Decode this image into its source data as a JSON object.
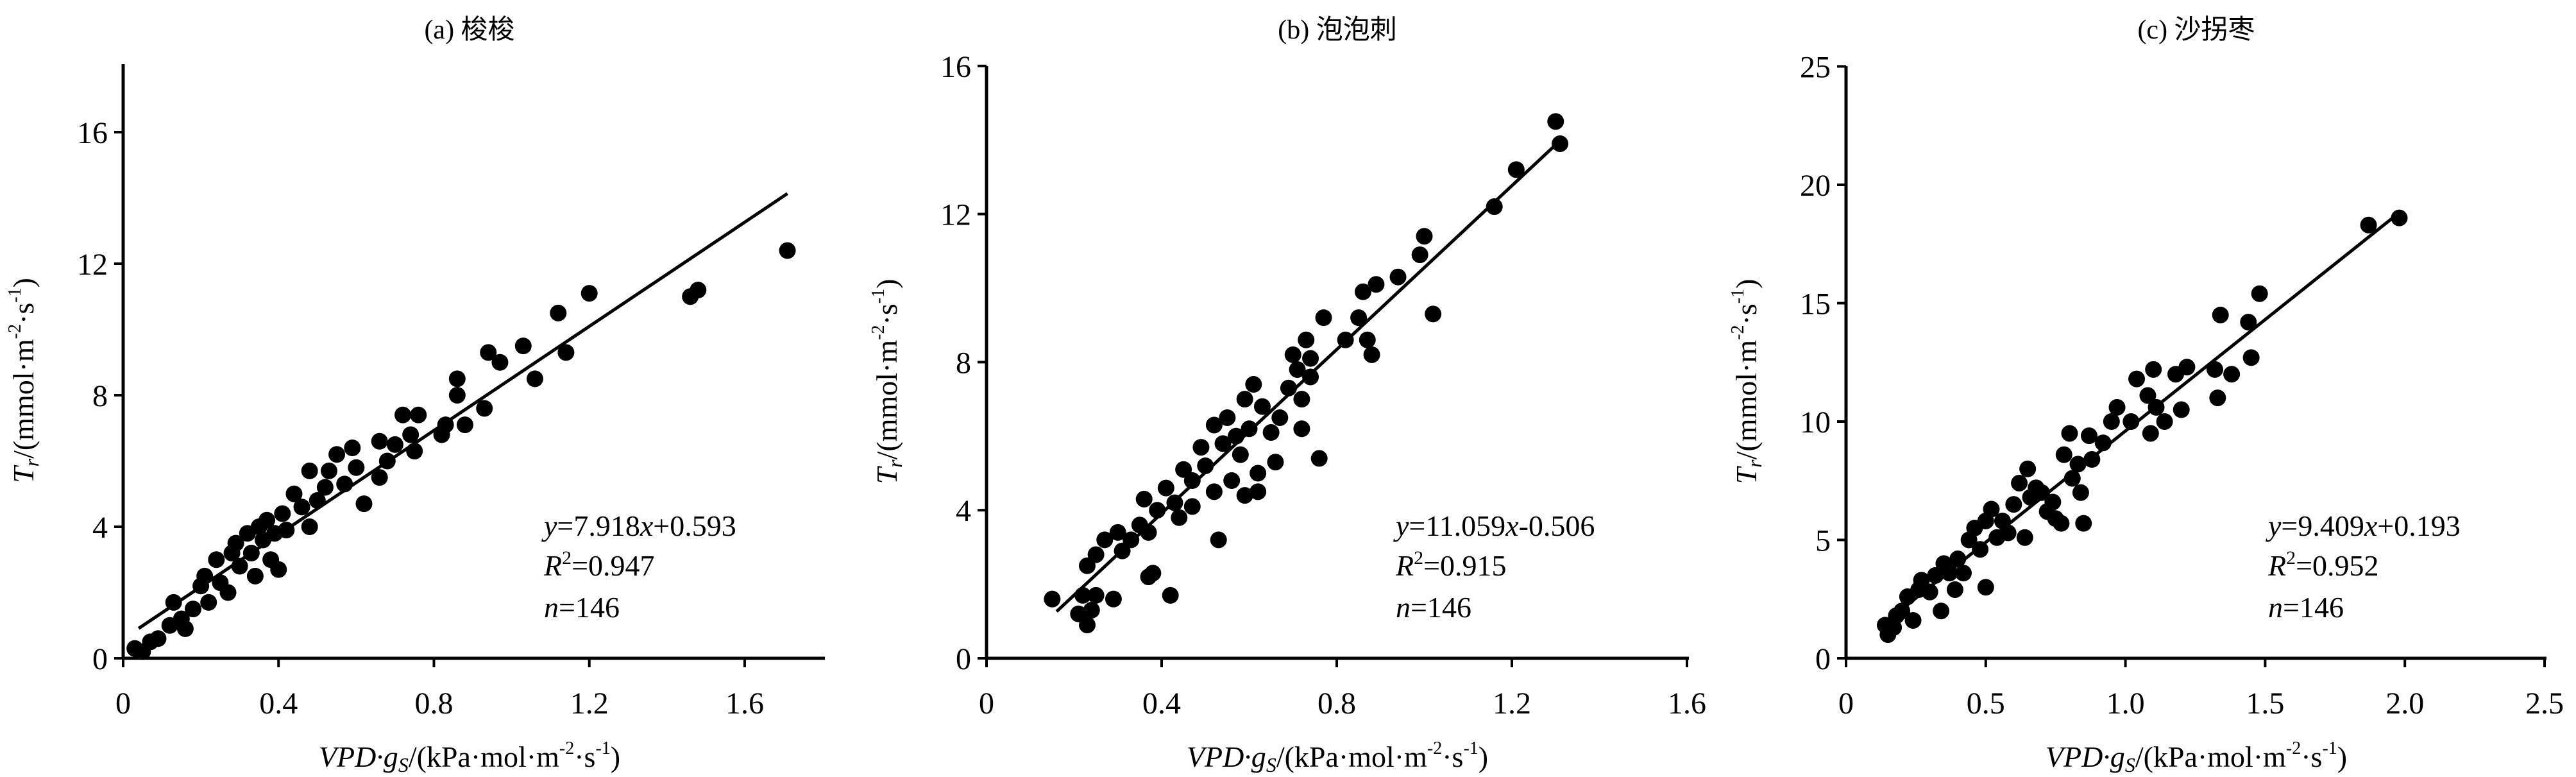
{
  "chart_data": [
    {
      "type": "scatter",
      "title": "(a) 梭梭",
      "xlabel": {
        "var": "VPD·g",
        "sub": "S",
        "unit": "/(kPa·mol·m",
        "sup1": "-2",
        "mid": "·s",
        "sup2": "-1",
        "close": ")"
      },
      "ylabel": {
        "var": "T",
        "sub": "r",
        "unit": "/(mmol·m",
        "sup1": "-2",
        "mid": "·s",
        "sup2": "-1",
        "close": ")"
      },
      "xlim": [
        0,
        1.8
      ],
      "ylim": [
        0,
        18
      ],
      "xticks": [
        "0",
        "0.4",
        "0.8",
        "1.2",
        "1.6"
      ],
      "xtick_values": [
        0,
        0.4,
        0.8,
        1.2,
        1.6
      ],
      "yticks": [
        "0",
        "4",
        "8",
        "12",
        "16"
      ],
      "ytick_values": [
        0,
        4,
        8,
        12,
        16
      ],
      "regression": {
        "slope": 7.918,
        "intercept": 0.593,
        "x_range": [
          0.04,
          1.71
        ]
      },
      "annotation": {
        "eq_y": "y",
        "eq_mid": "=7.918",
        "eq_x": "x",
        "eq_end": "+0.593",
        "r_var": "R",
        "r_sup": "2",
        "r_val": "=0.947",
        "n_var": "n",
        "n_val": "=146"
      },
      "points": [
        [
          0.03,
          0.3
        ],
        [
          0.05,
          0.2
        ],
        [
          0.07,
          0.5
        ],
        [
          0.09,
          0.6
        ],
        [
          0.12,
          1.0
        ],
        [
          0.13,
          1.7
        ],
        [
          0.15,
          1.2
        ],
        [
          0.16,
          0.9
        ],
        [
          0.18,
          1.5
        ],
        [
          0.2,
          2.2
        ],
        [
          0.21,
          2.5
        ],
        [
          0.22,
          1.7
        ],
        [
          0.24,
          3.0
        ],
        [
          0.25,
          2.3
        ],
        [
          0.27,
          2.0
        ],
        [
          0.28,
          3.2
        ],
        [
          0.29,
          3.5
        ],
        [
          0.3,
          2.8
        ],
        [
          0.32,
          3.8
        ],
        [
          0.33,
          3.2
        ],
        [
          0.34,
          2.5
        ],
        [
          0.35,
          4.0
        ],
        [
          0.36,
          3.6
        ],
        [
          0.37,
          4.2
        ],
        [
          0.38,
          3.0
        ],
        [
          0.39,
          3.8
        ],
        [
          0.4,
          2.7
        ],
        [
          0.41,
          4.4
        ],
        [
          0.42,
          3.9
        ],
        [
          0.44,
          5.0
        ],
        [
          0.46,
          4.6
        ],
        [
          0.48,
          4.0
        ],
        [
          0.48,
          5.7
        ],
        [
          0.5,
          4.8
        ],
        [
          0.52,
          5.2
        ],
        [
          0.53,
          5.7
        ],
        [
          0.55,
          6.2
        ],
        [
          0.57,
          5.3
        ],
        [
          0.59,
          6.4
        ],
        [
          0.6,
          5.8
        ],
        [
          0.62,
          4.7
        ],
        [
          0.66,
          5.5
        ],
        [
          0.66,
          6.6
        ],
        [
          0.68,
          6.0
        ],
        [
          0.7,
          6.5
        ],
        [
          0.72,
          7.4
        ],
        [
          0.74,
          6.8
        ],
        [
          0.75,
          6.3
        ],
        [
          0.76,
          7.4
        ],
        [
          0.82,
          6.8
        ],
        [
          0.83,
          7.1
        ],
        [
          0.86,
          8.0
        ],
        [
          0.86,
          8.5
        ],
        [
          0.88,
          7.1
        ],
        [
          0.93,
          7.6
        ],
        [
          0.94,
          9.3
        ],
        [
          0.97,
          9.0
        ],
        [
          1.03,
          9.5
        ],
        [
          1.06,
          8.5
        ],
        [
          1.12,
          10.5
        ],
        [
          1.14,
          9.3
        ],
        [
          1.2,
          11.1
        ],
        [
          1.46,
          11.0
        ],
        [
          1.48,
          11.2
        ],
        [
          1.71,
          12.4
        ]
      ]
    },
    {
      "type": "scatter",
      "title": "(b) 泡泡刺",
      "xlabel": {
        "var": "VPD·g",
        "sub": "S",
        "unit": "/(kPa·mol·m",
        "sup1": "-2",
        "mid": "·s",
        "sup2": "-1",
        "close": ")"
      },
      "ylabel": {
        "var": "T",
        "sub": "r",
        "unit": "/(mmol·m",
        "sup1": "-2",
        "mid": "·s",
        "sup2": "-1",
        "close": ")"
      },
      "xlim": [
        0,
        1.6
      ],
      "ylim": [
        0,
        16
      ],
      "xticks": [
        "0",
        "0.4",
        "0.8",
        "1.2",
        "1.6"
      ],
      "xtick_values": [
        0,
        0.4,
        0.8,
        1.2,
        1.6
      ],
      "yticks": [
        "0",
        "4",
        "8",
        "12",
        "16"
      ],
      "ytick_values": [
        0,
        4,
        8,
        12,
        16
      ],
      "regression": {
        "slope": 11.059,
        "intercept": -0.506,
        "x_range": [
          0.16,
          1.31
        ]
      },
      "annotation": {
        "eq_y": "y",
        "eq_mid": "=11.059",
        "eq_x": "x",
        "eq_end": "-0.506",
        "r_var": "R",
        "r_sup": "2",
        "r_val": "=0.915",
        "n_var": "n",
        "n_val": "=146"
      },
      "points": [
        [
          0.15,
          1.6
        ],
        [
          0.21,
          1.2
        ],
        [
          0.22,
          1.7
        ],
        [
          0.23,
          0.9
        ],
        [
          0.24,
          1.3
        ],
        [
          0.25,
          1.7
        ],
        [
          0.23,
          2.5
        ],
        [
          0.25,
          2.8
        ],
        [
          0.27,
          3.2
        ],
        [
          0.29,
          1.6
        ],
        [
          0.3,
          3.4
        ],
        [
          0.31,
          2.9
        ],
        [
          0.33,
          3.2
        ],
        [
          0.35,
          3.6
        ],
        [
          0.36,
          4.3
        ],
        [
          0.37,
          2.2
        ],
        [
          0.37,
          3.4
        ],
        [
          0.38,
          2.3
        ],
        [
          0.39,
          4.0
        ],
        [
          0.41,
          4.6
        ],
        [
          0.42,
          1.7
        ],
        [
          0.43,
          4.2
        ],
        [
          0.44,
          3.8
        ],
        [
          0.45,
          5.1
        ],
        [
          0.47,
          4.8
        ],
        [
          0.47,
          4.1
        ],
        [
          0.49,
          5.7
        ],
        [
          0.5,
          5.2
        ],
        [
          0.52,
          4.5
        ],
        [
          0.52,
          6.3
        ],
        [
          0.53,
          3.2
        ],
        [
          0.54,
          5.8
        ],
        [
          0.55,
          6.5
        ],
        [
          0.56,
          4.8
        ],
        [
          0.57,
          6.0
        ],
        [
          0.58,
          5.5
        ],
        [
          0.59,
          7.0
        ],
        [
          0.59,
          4.4
        ],
        [
          0.6,
          6.2
        ],
        [
          0.61,
          7.4
        ],
        [
          0.62,
          4.5
        ],
        [
          0.62,
          5.0
        ],
        [
          0.63,
          6.8
        ],
        [
          0.65,
          6.1
        ],
        [
          0.66,
          5.3
        ],
        [
          0.67,
          6.5
        ],
        [
          0.69,
          7.3
        ],
        [
          0.7,
          8.2
        ],
        [
          0.71,
          7.8
        ],
        [
          0.72,
          7.0
        ],
        [
          0.72,
          6.2
        ],
        [
          0.73,
          8.6
        ],
        [
          0.74,
          8.1
        ],
        [
          0.74,
          7.6
        ],
        [
          0.76,
          5.4
        ],
        [
          0.77,
          9.2
        ],
        [
          0.82,
          8.6
        ],
        [
          0.85,
          9.2
        ],
        [
          0.86,
          9.9
        ],
        [
          0.87,
          8.6
        ],
        [
          0.88,
          8.2
        ],
        [
          0.89,
          10.1
        ],
        [
          0.94,
          10.3
        ],
        [
          0.99,
          10.9
        ],
        [
          1.0,
          11.4
        ],
        [
          1.02,
          9.3
        ],
        [
          1.16,
          12.2
        ],
        [
          1.21,
          13.2
        ],
        [
          1.3,
          14.5
        ],
        [
          1.31,
          13.9
        ]
      ]
    },
    {
      "type": "scatter",
      "title": "(c) 沙拐枣",
      "xlabel": {
        "var": "VPD·g",
        "sub": "S",
        "unit": "/(kPa·mol·m",
        "sup1": "-2",
        "mid": "·s",
        "sup2": "-1",
        "close": ")"
      },
      "ylabel": {
        "var": "T",
        "sub": "r",
        "unit": "/(mmol·m",
        "sup1": "-2",
        "mid": "·s",
        "sup2": "-1",
        "close": ")"
      },
      "xlim": [
        0,
        2.5
      ],
      "ylim": [
        0,
        25
      ],
      "xticks": [
        "0",
        "0.5",
        "1.0",
        "1.5",
        "2.0",
        "2.5"
      ],
      "xtick_values": [
        0,
        0.5,
        1.0,
        1.5,
        2.0,
        2.5
      ],
      "yticks": [
        "0",
        "5",
        "10",
        "15",
        "20",
        "25"
      ],
      "ytick_values": [
        0,
        5,
        10,
        15,
        20,
        25
      ],
      "regression": {
        "slope": 9.409,
        "intercept": 0.193,
        "x_range": [
          0.14,
          1.98
        ]
      },
      "annotation": {
        "eq_y": "y",
        "eq_mid": "=9.409",
        "eq_x": "x",
        "eq_end": "+0.193",
        "r_var": "R",
        "r_sup": "2",
        "r_val": "=0.952",
        "n_var": "n",
        "n_val": "=146"
      },
      "points": [
        [
          0.14,
          1.4
        ],
        [
          0.15,
          1.0
        ],
        [
          0.17,
          1.3
        ],
        [
          0.18,
          1.8
        ],
        [
          0.2,
          2.0
        ],
        [
          0.22,
          2.6
        ],
        [
          0.24,
          1.6
        ],
        [
          0.26,
          2.9
        ],
        [
          0.27,
          3.3
        ],
        [
          0.3,
          2.8
        ],
        [
          0.32,
          3.5
        ],
        [
          0.34,
          2.0
        ],
        [
          0.35,
          4.0
        ],
        [
          0.37,
          3.6
        ],
        [
          0.39,
          2.9
        ],
        [
          0.4,
          4.2
        ],
        [
          0.42,
          3.6
        ],
        [
          0.44,
          5.0
        ],
        [
          0.46,
          5.5
        ],
        [
          0.48,
          4.6
        ],
        [
          0.5,
          3.0
        ],
        [
          0.5,
          5.8
        ],
        [
          0.52,
          6.3
        ],
        [
          0.54,
          5.1
        ],
        [
          0.56,
          5.8
        ],
        [
          0.58,
          5.3
        ],
        [
          0.6,
          6.5
        ],
        [
          0.62,
          7.4
        ],
        [
          0.64,
          5.1
        ],
        [
          0.65,
          8.0
        ],
        [
          0.66,
          6.8
        ],
        [
          0.68,
          7.2
        ],
        [
          0.7,
          7.0
        ],
        [
          0.72,
          6.2
        ],
        [
          0.74,
          6.6
        ],
        [
          0.75,
          5.9
        ],
        [
          0.77,
          5.7
        ],
        [
          0.78,
          8.6
        ],
        [
          0.8,
          9.5
        ],
        [
          0.81,
          7.6
        ],
        [
          0.83,
          8.2
        ],
        [
          0.84,
          7.0
        ],
        [
          0.85,
          5.7
        ],
        [
          0.87,
          9.4
        ],
        [
          0.88,
          8.4
        ],
        [
          0.92,
          9.1
        ],
        [
          0.95,
          10.0
        ],
        [
          0.97,
          10.6
        ],
        [
          1.02,
          10.0
        ],
        [
          1.04,
          11.8
        ],
        [
          1.08,
          11.1
        ],
        [
          1.09,
          9.5
        ],
        [
          1.1,
          12.2
        ],
        [
          1.11,
          10.6
        ],
        [
          1.14,
          10.0
        ],
        [
          1.18,
          12.0
        ],
        [
          1.2,
          10.5
        ],
        [
          1.22,
          12.3
        ],
        [
          1.32,
          12.2
        ],
        [
          1.33,
          11.0
        ],
        [
          1.34,
          14.5
        ],
        [
          1.38,
          12.0
        ],
        [
          1.44,
          14.2
        ],
        [
          1.45,
          12.7
        ],
        [
          1.48,
          15.4
        ],
        [
          1.87,
          18.3
        ],
        [
          1.98,
          18.6
        ]
      ]
    }
  ]
}
